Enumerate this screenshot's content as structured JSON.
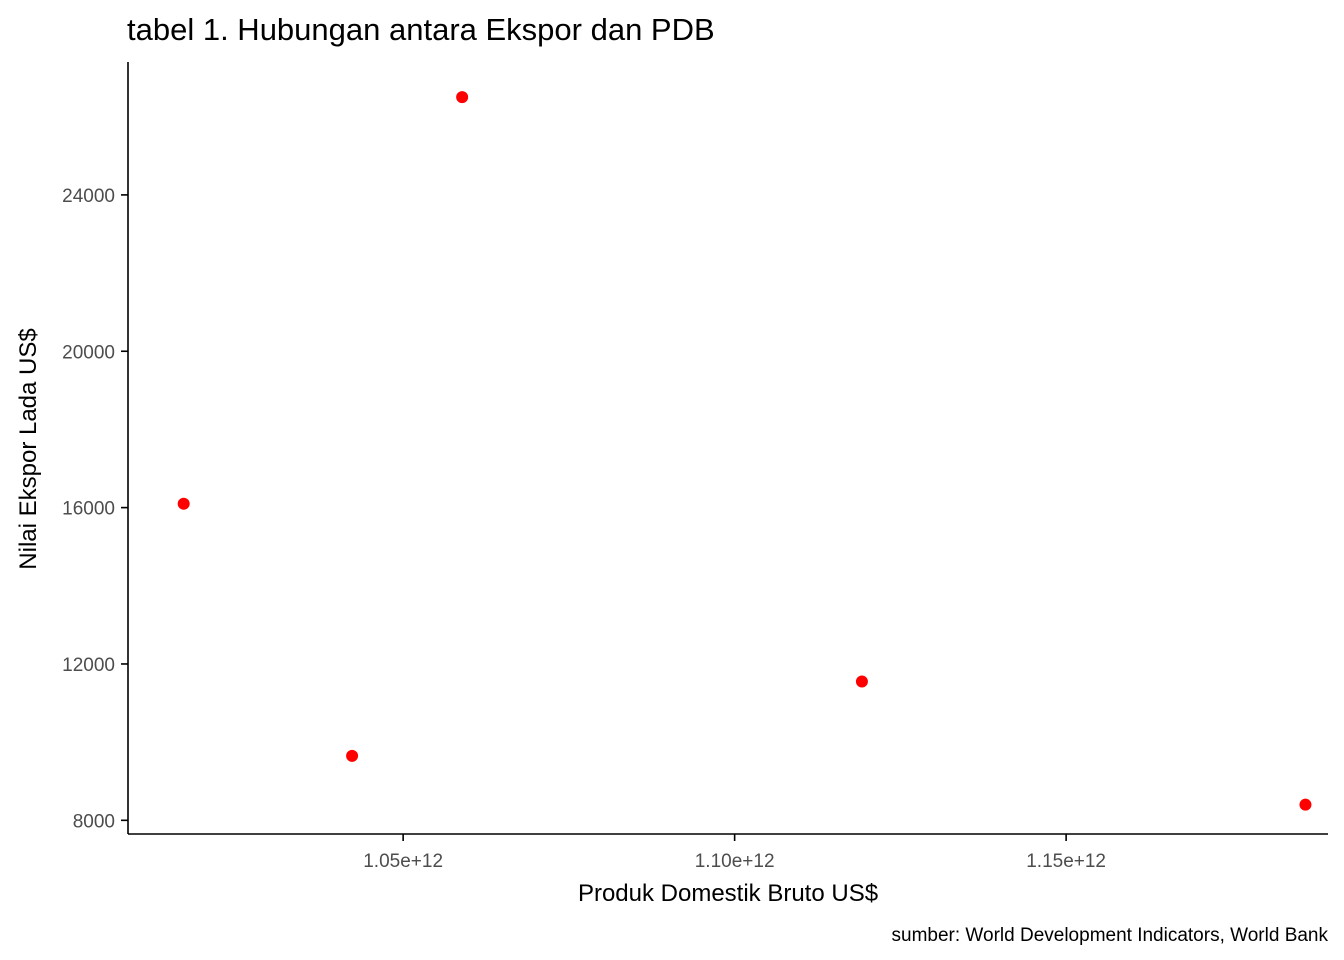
{
  "chart_data": {
    "type": "scatter",
    "title": "tabel 1. Hubungan antara Ekspor dan PDB",
    "xlabel": "Produk Domestik Bruto US$",
    "ylabel": "Nilai Ekspor Lada US$",
    "caption": "sumber: World Development Indicators, World Bank",
    "xlim": [
      1008500000000.0,
      1189500000000.0
    ],
    "ylim": [
      7650,
      27400
    ],
    "x_ticks": [
      {
        "value": 1050000000000.0,
        "label": "1.05e+12"
      },
      {
        "value": 1100000000000.0,
        "label": "1.10e+12"
      },
      {
        "value": 1150000000000.0,
        "label": "1.15e+12"
      }
    ],
    "y_ticks": [
      {
        "value": 8000,
        "label": "8000"
      },
      {
        "value": 12000,
        "label": "12000"
      },
      {
        "value": 16000,
        "label": "16000"
      },
      {
        "value": 20000,
        "label": "20000"
      },
      {
        "value": 24000,
        "label": "24000"
      }
    ],
    "points": [
      {
        "x": 1016900000000.0,
        "y": 16100
      },
      {
        "x": 1042300000000.0,
        "y": 9650
      },
      {
        "x": 1058900000000.0,
        "y": 26500
      },
      {
        "x": 1119200000000.0,
        "y": 11550
      },
      {
        "x": 1186100000000.0,
        "y": 8400
      }
    ],
    "point_color": "#ff0000",
    "grid": false,
    "legend": "none"
  }
}
